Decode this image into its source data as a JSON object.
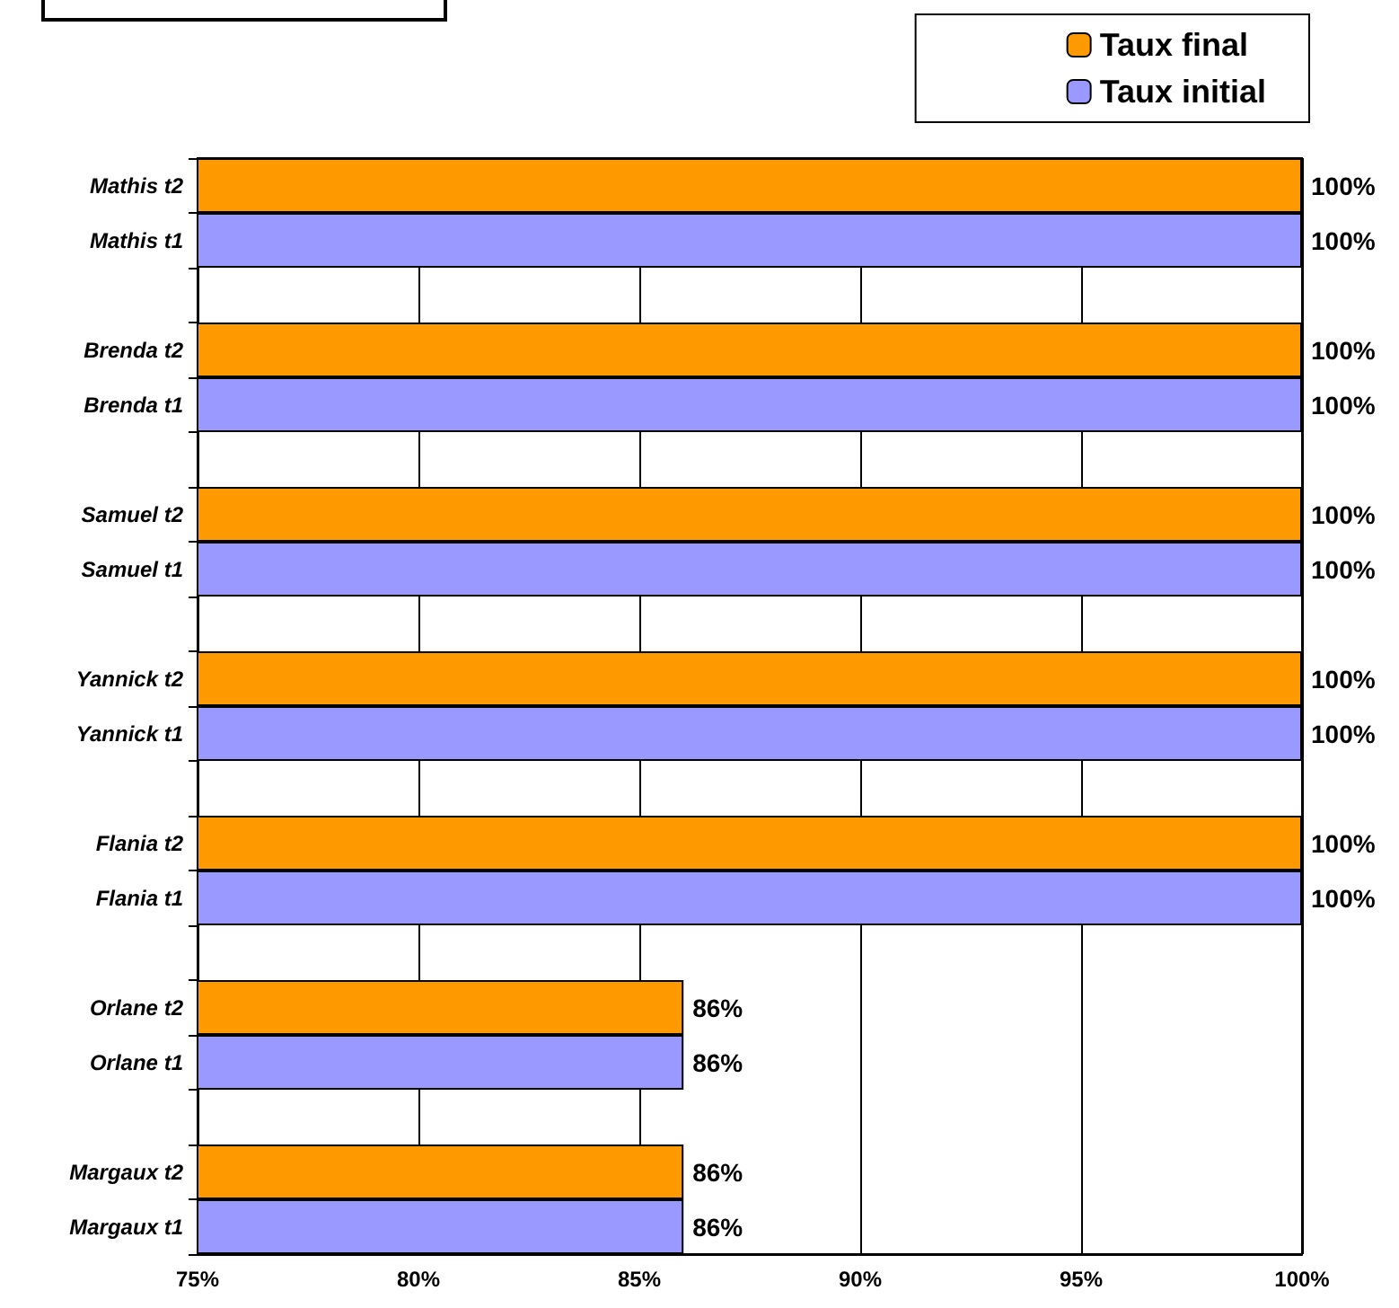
{
  "chart_data": {
    "type": "bar",
    "orientation": "horizontal",
    "stacked": true,
    "categories": [
      "Mathis t2",
      "Mathis t1",
      null,
      "Brenda t2",
      "Brenda t1",
      null,
      "Samuel t2",
      "Samuel t1",
      null,
      "Yannick t2",
      "Yannick t1",
      null,
      "Flania t2",
      "Flania t1",
      null,
      "Orlane t2",
      "Orlane t1",
      null,
      "Margaux t2",
      "Margaux t1"
    ],
    "series": [
      {
        "name": "Taux final",
        "color": "#ff9900",
        "values": [
          100,
          null,
          null,
          100,
          null,
          null,
          100,
          null,
          null,
          100,
          null,
          null,
          100,
          null,
          null,
          86,
          null,
          null,
          86,
          null
        ],
        "value_labels": [
          "100%",
          null,
          null,
          "100%",
          null,
          null,
          "100%",
          null,
          null,
          "100%",
          null,
          null,
          "100%",
          null,
          null,
          "86%",
          null,
          null,
          "86%",
          null
        ]
      },
      {
        "name": "Taux initial",
        "color": "#9999ff",
        "values": [
          null,
          100,
          null,
          null,
          100,
          null,
          null,
          100,
          null,
          null,
          100,
          null,
          null,
          100,
          null,
          null,
          86,
          null,
          null,
          86
        ],
        "value_labels": [
          null,
          "100%",
          null,
          null,
          "100%",
          null,
          null,
          "100%",
          null,
          null,
          "100%",
          null,
          null,
          "100%",
          null,
          null,
          "86%",
          null,
          null,
          "86%"
        ]
      }
    ],
    "xlim": [
      75,
      100
    ],
    "xticks": [
      {
        "value": 75,
        "label": "75%"
      },
      {
        "value": 80,
        "label": "80%"
      },
      {
        "value": 85,
        "label": "85%"
      },
      {
        "value": 90,
        "label": "90%"
      },
      {
        "value": 95,
        "label": "95%"
      },
      {
        "value": 100,
        "label": "100%"
      }
    ],
    "grid": "x",
    "legend": "top right"
  }
}
